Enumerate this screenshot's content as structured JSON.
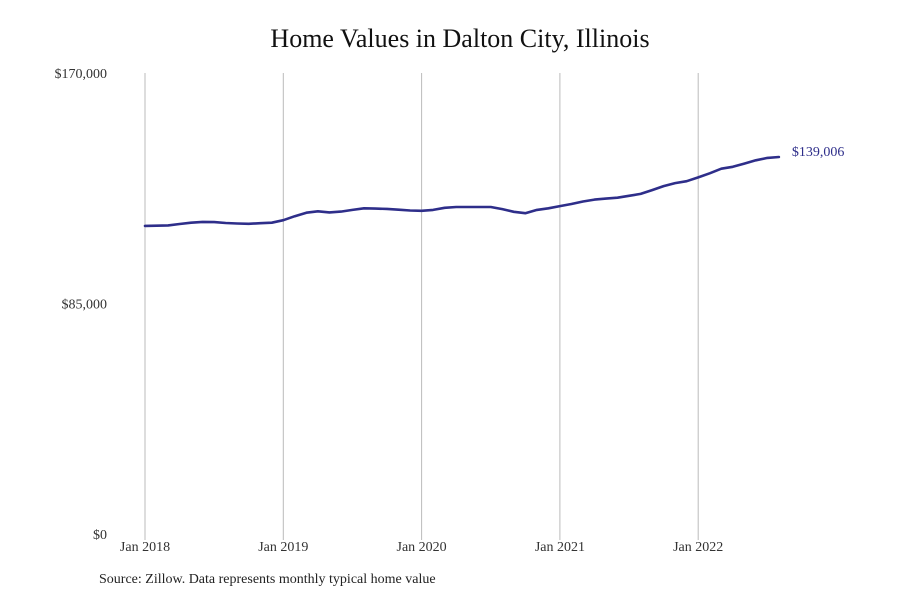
{
  "title": "Home Values in Dalton City, Illinois",
  "source_note": "Source: Zillow. Data represents monthly typical home value",
  "colors": {
    "line": "#2e2e8a",
    "grid": "#bbbbbb",
    "text": "#333333"
  },
  "chart_data": {
    "type": "line",
    "title": "Home Values in Dalton City, Illinois",
    "xlabel": "",
    "ylabel": "",
    "ylim": [
      0,
      170000
    ],
    "y_ticks": [
      0,
      85000,
      170000
    ],
    "y_tick_labels": [
      "$0",
      "$85,000",
      "$170,000"
    ],
    "x_ticks": [
      "Jan 2018",
      "Jan 2019",
      "Jan 2020",
      "Jan 2021",
      "Jan 2022"
    ],
    "grid": "vertical",
    "legend": "none",
    "end_label": "$139,006",
    "series": [
      {
        "x": [
          "2018-01",
          "2018-02",
          "2018-03",
          "2018-04",
          "2018-05",
          "2018-06",
          "2018-07",
          "2018-08",
          "2018-09",
          "2018-10",
          "2018-11",
          "2018-12",
          "2019-01",
          "2019-02",
          "2019-03",
          "2019-04",
          "2019-05",
          "2019-06",
          "2019-07",
          "2019-08",
          "2019-09",
          "2019-10",
          "2019-11",
          "2019-12",
          "2020-01",
          "2020-02",
          "2020-03",
          "2020-04",
          "2020-05",
          "2020-06",
          "2020-07",
          "2020-08",
          "2020-09",
          "2020-10",
          "2020-11",
          "2020-12",
          "2021-01",
          "2021-02",
          "2021-03",
          "2021-04",
          "2021-05",
          "2021-06",
          "2021-07",
          "2021-08",
          "2021-09",
          "2021-10",
          "2021-11",
          "2021-12",
          "2022-01",
          "2022-02",
          "2022-03",
          "2022-04",
          "2022-05",
          "2022-06",
          "2022-07",
          "2022-08"
        ],
        "values": [
          113600,
          113700,
          113800,
          114300,
          114800,
          115100,
          115000,
          114700,
          114500,
          114400,
          114600,
          114800,
          115700,
          117200,
          118500,
          119000,
          118600,
          118900,
          119500,
          120100,
          120000,
          119900,
          119600,
          119300,
          119200,
          119500,
          120300,
          120600,
          120600,
          120600,
          120600,
          119800,
          118800,
          118300,
          119500,
          120100,
          120900,
          121700,
          122600,
          123300,
          123700,
          124000,
          124700,
          125400,
          126800,
          128300,
          129400,
          130100,
          131500,
          133000,
          134700,
          135400,
          136600,
          137800,
          138700,
          139006
        ]
      }
    ]
  }
}
